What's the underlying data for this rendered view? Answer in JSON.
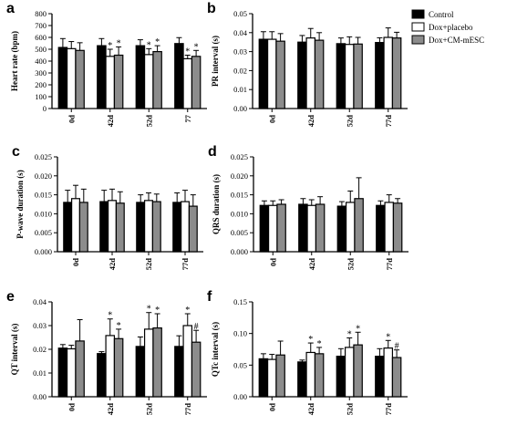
{
  "legend": [
    {
      "name": "Control",
      "color": "#000000"
    },
    {
      "name": "Dox+placebo",
      "color": "#ffffff"
    },
    {
      "name": "Dox+CM-mESC",
      "color": "#8c8c8c"
    }
  ],
  "chart_data": [
    {
      "type": "bar",
      "panel": "a",
      "ylabel": "Heart rate (bpm)",
      "ylim": [
        0,
        800
      ],
      "yticks": [
        "0",
        "100",
        "200",
        "300",
        "400",
        "500",
        "600",
        "700",
        "800"
      ],
      "categories": [
        "0d",
        "42d",
        "52d",
        "77"
      ],
      "series": [
        {
          "name": "Control",
          "values": [
            515,
            530,
            530,
            548
          ],
          "errors": [
            75,
            60,
            50,
            50
          ]
        },
        {
          "name": "Dox+placebo",
          "values": [
            505,
            440,
            455,
            420
          ],
          "errors": [
            60,
            60,
            50,
            30
          ]
        },
        {
          "name": "Dox+CM-mESC",
          "values": [
            490,
            450,
            480,
            440
          ],
          "errors": [
            65,
            70,
            50,
            50
          ]
        }
      ],
      "annotations": [
        {
          "category": 1,
          "series": 1,
          "text": "*"
        },
        {
          "category": 1,
          "series": 2,
          "text": "*"
        },
        {
          "category": 2,
          "series": 1,
          "text": "*"
        },
        {
          "category": 2,
          "series": 2,
          "text": "*"
        },
        {
          "category": 3,
          "series": 1,
          "text": "*"
        },
        {
          "category": 3,
          "series": 2,
          "text": "*"
        }
      ]
    },
    {
      "type": "bar",
      "panel": "b",
      "ylabel": "PR interval (s)",
      "ylim": [
        0,
        0.05
      ],
      "yticks": [
        "0.00",
        "0.01",
        "0.02",
        "0.03",
        "0.04",
        "0.05"
      ],
      "categories": [
        "0d",
        "42d",
        "52d",
        "77d"
      ],
      "series": [
        {
          "name": "Control",
          "values": [
            0.0365,
            0.035,
            0.0342,
            0.0348
          ],
          "errors": [
            0.004,
            0.0035,
            0.003,
            0.0025
          ]
        },
        {
          "name": "Dox+placebo",
          "values": [
            0.0365,
            0.0372,
            0.0338,
            0.0375
          ],
          "errors": [
            0.004,
            0.005,
            0.004,
            0.005
          ]
        },
        {
          "name": "Dox+CM-mESC",
          "values": [
            0.0355,
            0.036,
            0.034,
            0.0372
          ],
          "errors": [
            0.004,
            0.004,
            0.0035,
            0.003
          ]
        }
      ],
      "annotations": []
    },
    {
      "type": "bar",
      "panel": "c",
      "ylabel": "P-wave duration (s)",
      "ylim": [
        0,
        0.025
      ],
      "yticks": [
        "0.000",
        "0.005",
        "0.010",
        "0.015",
        "0.020",
        "0.025"
      ],
      "categories": [
        "0d",
        "42d",
        "52d",
        "77d"
      ],
      "series": [
        {
          "name": "Control",
          "values": [
            0.013,
            0.0132,
            0.013,
            0.013
          ],
          "errors": [
            0.0032,
            0.003,
            0.002,
            0.0025
          ]
        },
        {
          "name": "Dox+placebo",
          "values": [
            0.014,
            0.0135,
            0.0135,
            0.0132
          ],
          "errors": [
            0.0035,
            0.003,
            0.002,
            0.003
          ]
        },
        {
          "name": "Dox+CM-mESC",
          "values": [
            0.013,
            0.0128,
            0.0132,
            0.012
          ],
          "errors": [
            0.0035,
            0.003,
            0.002,
            0.003
          ]
        }
      ],
      "annotations": []
    },
    {
      "type": "bar",
      "panel": "d",
      "ylabel": "QRS duration (s)",
      "ylim": [
        0,
        0.025
      ],
      "yticks": [
        "0.000",
        "0.005",
        "0.010",
        "0.015",
        "0.020",
        "0.025"
      ],
      "categories": [
        "0d",
        "42d",
        "52d",
        "77d"
      ],
      "series": [
        {
          "name": "Control",
          "values": [
            0.0122,
            0.0125,
            0.012,
            0.0122
          ],
          "errors": [
            0.0012,
            0.0015,
            0.0012,
            0.0012
          ]
        },
        {
          "name": "Dox+placebo",
          "values": [
            0.0122,
            0.0122,
            0.013,
            0.013
          ],
          "errors": [
            0.0012,
            0.0015,
            0.003,
            0.002
          ]
        },
        {
          "name": "Dox+CM-mESC",
          "values": [
            0.0125,
            0.0125,
            0.014,
            0.0128
          ],
          "errors": [
            0.0012,
            0.002,
            0.0055,
            0.0012
          ]
        }
      ],
      "annotations": []
    },
    {
      "type": "bar",
      "panel": "e",
      "ylabel": "QT interval (s)",
      "ylim": [
        0,
        0.04
      ],
      "yticks": [
        "0.00",
        "0.01",
        "0.02",
        "0.03",
        "0.04"
      ],
      "categories": [
        "0d",
        "42d",
        "52d",
        "77d"
      ],
      "series": [
        {
          "name": "Control",
          "values": [
            0.0205,
            0.0182,
            0.0212,
            0.0212
          ],
          "errors": [
            0.0015,
            0.0008,
            0.004,
            0.0045
          ]
        },
        {
          "name": "Dox+placebo",
          "values": [
            0.0202,
            0.0258,
            0.0285,
            0.03
          ],
          "errors": [
            0.0015,
            0.007,
            0.007,
            0.005
          ]
        },
        {
          "name": "Dox+CM-mESC",
          "values": [
            0.0235,
            0.0245,
            0.029,
            0.023
          ],
          "errors": [
            0.009,
            0.004,
            0.006,
            0.005
          ]
        }
      ],
      "annotations": [
        {
          "category": 1,
          "series": 1,
          "text": "*"
        },
        {
          "category": 1,
          "series": 2,
          "text": "*"
        },
        {
          "category": 2,
          "series": 1,
          "text": "*"
        },
        {
          "category": 2,
          "series": 2,
          "text": "*"
        },
        {
          "category": 3,
          "series": 1,
          "text": "*"
        },
        {
          "category": 3,
          "series": 2,
          "text": "#"
        }
      ]
    },
    {
      "type": "bar",
      "panel": "f",
      "ylabel": "QTc interval (s)",
      "ylim": [
        0,
        0.15
      ],
      "yticks": [
        "0.00",
        "0.05",
        "0.10",
        "0.15"
      ],
      "categories": [
        "0d",
        "42d",
        "52d",
        "77d"
      ],
      "series": [
        {
          "name": "Control",
          "values": [
            0.06,
            0.055,
            0.064,
            0.064
          ],
          "errors": [
            0.008,
            0.003,
            0.012,
            0.012
          ]
        },
        {
          "name": "Dox+placebo",
          "values": [
            0.059,
            0.07,
            0.078,
            0.077
          ],
          "errors": [
            0.008,
            0.015,
            0.015,
            0.012
          ]
        },
        {
          "name": "Dox+CM-mESC",
          "values": [
            0.066,
            0.068,
            0.082,
            0.062
          ],
          "errors": [
            0.022,
            0.01,
            0.02,
            0.012
          ]
        }
      ],
      "annotations": [
        {
          "category": 1,
          "series": 1,
          "text": "*"
        },
        {
          "category": 1,
          "series": 2,
          "text": "*"
        },
        {
          "category": 2,
          "series": 1,
          "text": "*"
        },
        {
          "category": 2,
          "series": 2,
          "text": "*"
        },
        {
          "category": 3,
          "series": 1,
          "text": "*"
        },
        {
          "category": 3,
          "series": 2,
          "text": "#"
        }
      ]
    }
  ]
}
